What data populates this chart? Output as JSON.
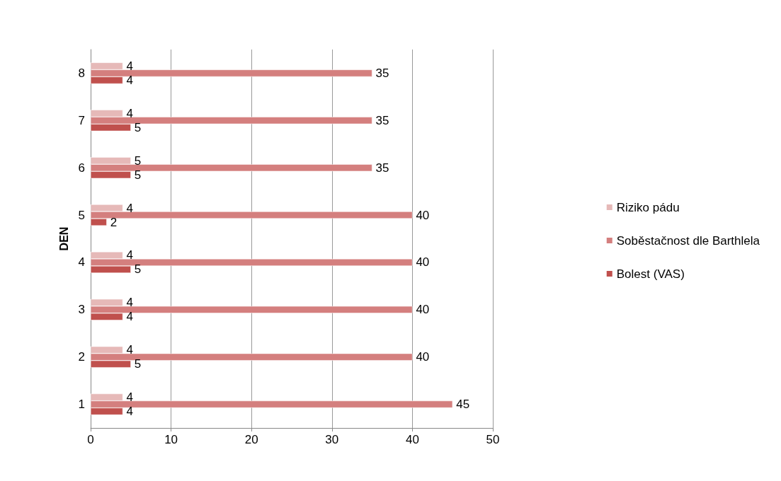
{
  "chart_data": {
    "type": "bar",
    "orientation": "horizontal",
    "ylabel": "DEN",
    "categories": [
      "8",
      "7",
      "6",
      "5",
      "4",
      "3",
      "2",
      "1"
    ],
    "series": [
      {
        "name": "Riziko pádu",
        "color": "#e6b9b8",
        "values": [
          4,
          4,
          5,
          4,
          4,
          4,
          4,
          4
        ]
      },
      {
        "name": "Soběstačnost dle Barthlela",
        "color": "#d47f7e",
        "values": [
          35,
          35,
          35,
          40,
          40,
          40,
          40,
          45
        ]
      },
      {
        "name": "Bolest (VAS)",
        "color": "#c0504d",
        "values": [
          4,
          5,
          5,
          2,
          5,
          4,
          5,
          4
        ]
      }
    ],
    "xlim": [
      0,
      50
    ],
    "xticks": [
      0,
      10,
      20,
      30,
      40,
      50
    ],
    "grid": "x",
    "legend": "right",
    "data_labels": true
  }
}
